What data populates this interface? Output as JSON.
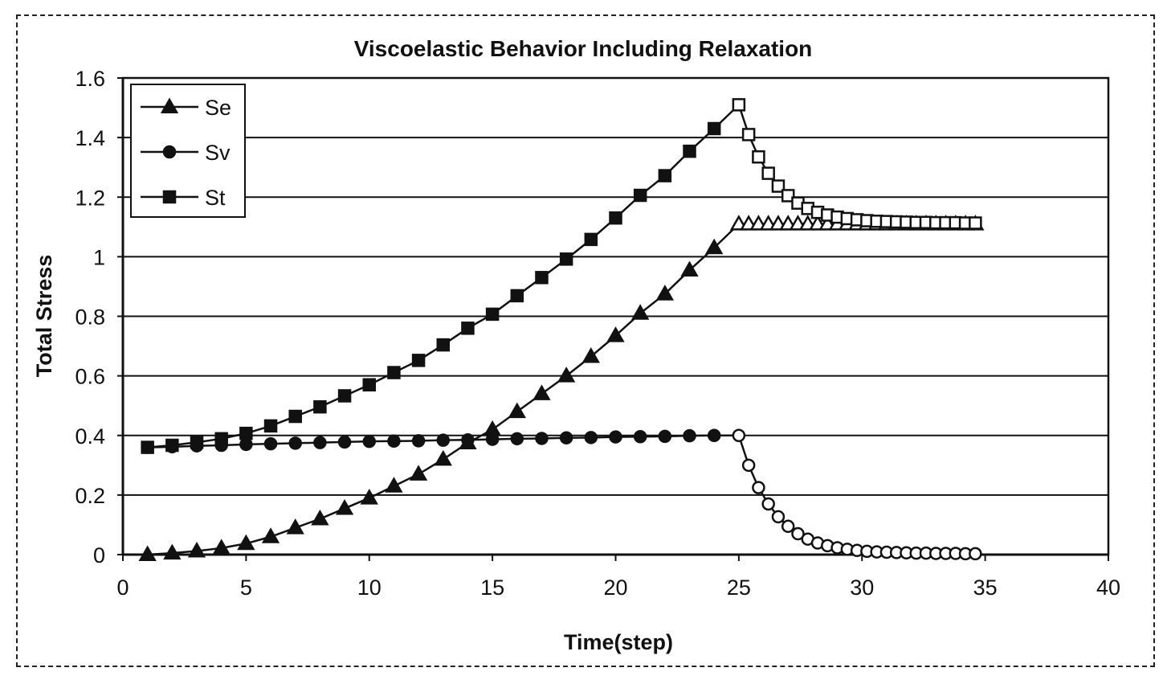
{
  "chart_data": {
    "type": "line",
    "title": "Viscoelastic Behavior Including Relaxation",
    "xlabel": "Time(step)",
    "ylabel": "Total Stress",
    "xlim": [
      0,
      40
    ],
    "ylim": [
      0,
      1.6
    ],
    "xticks": [
      "0",
      "5",
      "10",
      "15",
      "20",
      "25",
      "30",
      "35",
      "40"
    ],
    "xtick_values": [
      0,
      5,
      10,
      15,
      20,
      25,
      30,
      35,
      40
    ],
    "yticks": [
      "0",
      "0.2",
      "0.4",
      "0.6",
      "0.8",
      "1",
      "1.2",
      "1.4",
      "1.6"
    ],
    "ytick_values": [
      0,
      0.2,
      0.4,
      0.6,
      0.8,
      1.0,
      1.2,
      1.4,
      1.6
    ],
    "grid": "horizontal",
    "legend_position": "top-left",
    "legend": [
      {
        "name": "Se",
        "marker": "triangle"
      },
      {
        "name": "Sv",
        "marker": "circle"
      },
      {
        "name": "St",
        "marker": "square"
      }
    ],
    "loading_x": [
      1,
      2,
      3,
      4,
      5,
      6,
      7,
      8,
      9,
      10,
      11,
      12,
      13,
      14,
      15,
      16,
      17,
      18,
      19,
      20,
      21,
      22,
      23,
      24
    ],
    "relaxation_x": [
      25,
      25.4,
      25.8,
      26.2,
      26.6,
      27,
      27.4,
      27.8,
      28.2,
      28.6,
      29,
      29.4,
      29.8,
      30.2,
      30.6,
      31,
      31.4,
      31.8,
      32.2,
      32.6,
      33,
      33.4,
      33.8,
      34.2,
      34.6
    ],
    "series": [
      {
        "name": "Se",
        "marker": "triangle",
        "loading": [
          0,
          0.005,
          0.012,
          0.022,
          0.037,
          0.06,
          0.09,
          0.12,
          0.155,
          0.19,
          0.23,
          0.27,
          0.32,
          0.375,
          0.42,
          0.48,
          0.54,
          0.6,
          0.665,
          0.735,
          0.81,
          0.875,
          0.955,
          1.03
        ],
        "relaxation": [
          1.11,
          1.11,
          1.11,
          1.11,
          1.11,
          1.11,
          1.11,
          1.11,
          1.11,
          1.11,
          1.11,
          1.11,
          1.11,
          1.11,
          1.11,
          1.11,
          1.11,
          1.11,
          1.11,
          1.11,
          1.11,
          1.11,
          1.11,
          1.11,
          1.11
        ]
      },
      {
        "name": "Sv",
        "marker": "circle",
        "loading": [
          0.36,
          0.362,
          0.365,
          0.367,
          0.37,
          0.372,
          0.374,
          0.376,
          0.378,
          0.38,
          0.381,
          0.382,
          0.384,
          0.385,
          0.387,
          0.389,
          0.39,
          0.392,
          0.393,
          0.395,
          0.396,
          0.397,
          0.399,
          0.4
        ],
        "relaxation": [
          0.4,
          0.3,
          0.225,
          0.17,
          0.127,
          0.095,
          0.07,
          0.052,
          0.039,
          0.03,
          0.023,
          0.018,
          0.014,
          0.011,
          0.009,
          0.008,
          0.007,
          0.006,
          0.005,
          0.005,
          0.004,
          0.004,
          0.004,
          0.003,
          0.003
        ]
      },
      {
        "name": "St",
        "marker": "square",
        "loading": [
          0.36,
          0.367,
          0.377,
          0.389,
          0.407,
          0.432,
          0.464,
          0.496,
          0.533,
          0.57,
          0.611,
          0.652,
          0.704,
          0.76,
          0.807,
          0.869,
          0.93,
          0.992,
          1.058,
          1.13,
          1.206,
          1.272,
          1.354,
          1.43
        ],
        "relaxation": [
          1.51,
          1.41,
          1.335,
          1.28,
          1.237,
          1.205,
          1.18,
          1.162,
          1.149,
          1.14,
          1.133,
          1.128,
          1.124,
          1.121,
          1.119,
          1.118,
          1.117,
          1.116,
          1.115,
          1.115,
          1.114,
          1.114,
          1.114,
          1.113,
          1.113
        ]
      }
    ],
    "notes": "Filled markers for loading phase (t=1..24); open markers for relaxation phase (t>=25)."
  }
}
